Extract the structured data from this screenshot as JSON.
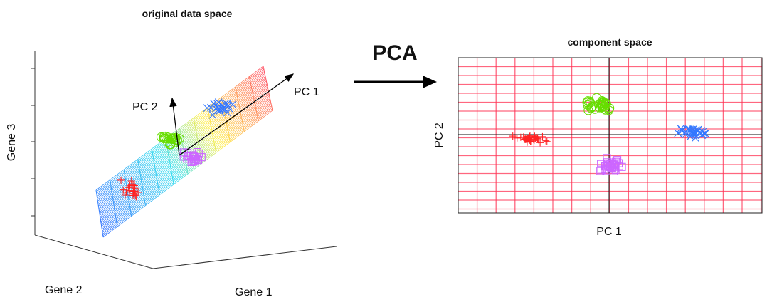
{
  "left_panel": {
    "title": "original data space",
    "axis_labels": {
      "gene1": "Gene 1",
      "gene2": "Gene 2",
      "gene3": "Gene 3"
    },
    "vector_labels": {
      "pc1": "PC 1",
      "pc2": "PC 2"
    },
    "plane_gradient": [
      "#3a7bff",
      "#33ddee",
      "#ffee44",
      "#ff5566"
    ]
  },
  "transform": {
    "label": "PCA",
    "arrow": "right-arrow-icon"
  },
  "right_panel": {
    "title": "component space",
    "xlabel": "PC 1",
    "ylabel": "PC 2",
    "grid_color": "#ff3355"
  },
  "clusters": [
    {
      "marker": "plus",
      "color": "#ff2222"
    },
    {
      "marker": "circle",
      "color": "#66dd00"
    },
    {
      "marker": "cross",
      "color": "#3377ff"
    },
    {
      "marker": "square",
      "color": "#cc66ff"
    }
  ]
}
